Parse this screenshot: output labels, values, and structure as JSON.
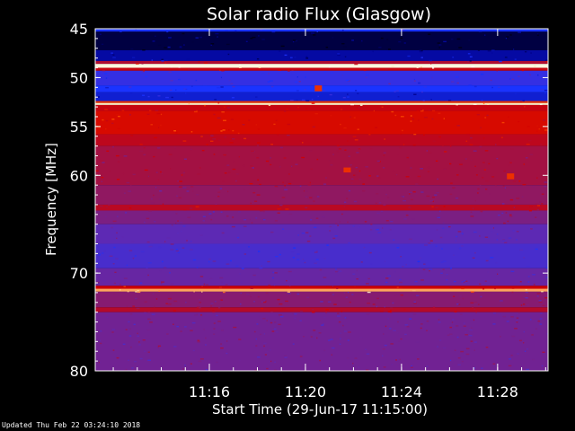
{
  "chart_data": {
    "type": "heatmap",
    "title": "Solar radio Flux (Glasgow)",
    "xlabel": "Start Time (29-Jun-17 11:15:00)",
    "ylabel": "Frequency [MHz]",
    "x_range_minutes": [
      11.25,
      30.1
    ],
    "y_range_mhz": [
      45,
      80
    ],
    "x_ticks": [
      {
        "minute": 16,
        "label": "11:16"
      },
      {
        "minute": 20,
        "label": "11:20"
      },
      {
        "minute": 24,
        "label": "11:24"
      },
      {
        "minute": 28,
        "label": "11:28"
      }
    ],
    "y_ticks": [
      {
        "mhz": 45,
        "label": "45"
      },
      {
        "mhz": 50,
        "label": "50"
      },
      {
        "mhz": 55,
        "label": "55"
      },
      {
        "mhz": 60,
        "label": "60"
      },
      {
        "mhz": 70,
        "label": "70"
      },
      {
        "mhz": 80,
        "label": "80"
      }
    ],
    "colormap": [
      "#000010",
      "#00008c",
      "#1a33ff",
      "#5a2ab8",
      "#9a1450",
      "#d10000",
      "#ff5000",
      "#ffe8a8",
      "#ffffff"
    ],
    "frequency_bands": [
      {
        "from": 45.0,
        "to": 45.3,
        "level": 0.25
      },
      {
        "from": 45.3,
        "to": 47.2,
        "level": 0.05
      },
      {
        "from": 47.2,
        "to": 48.3,
        "level": 0.15
      },
      {
        "from": 48.3,
        "to": 48.6,
        "level": 0.55
      },
      {
        "from": 48.6,
        "to": 49.0,
        "level": 0.95
      },
      {
        "from": 49.0,
        "to": 49.3,
        "level": 0.6
      },
      {
        "from": 49.3,
        "to": 50.8,
        "level": 0.3
      },
      {
        "from": 50.8,
        "to": 51.5,
        "level": 0.25
      },
      {
        "from": 51.5,
        "to": 52.4,
        "level": 0.2
      },
      {
        "from": 52.4,
        "to": 52.6,
        "level": 0.7
      },
      {
        "from": 52.6,
        "to": 52.8,
        "level": 0.92
      },
      {
        "from": 52.8,
        "to": 53.4,
        "level": 0.6
      },
      {
        "from": 53.4,
        "to": 55.8,
        "level": 0.64
      },
      {
        "from": 55.8,
        "to": 57.0,
        "level": 0.58
      },
      {
        "from": 57.0,
        "to": 61.0,
        "level": 0.52
      },
      {
        "from": 61.0,
        "to": 63.0,
        "level": 0.48
      },
      {
        "from": 63.0,
        "to": 63.6,
        "level": 0.57
      },
      {
        "from": 63.6,
        "to": 65.0,
        "level": 0.44
      },
      {
        "from": 65.0,
        "to": 67.0,
        "level": 0.38
      },
      {
        "from": 67.0,
        "to": 69.5,
        "level": 0.34
      },
      {
        "from": 69.5,
        "to": 71.3,
        "level": 0.4
      },
      {
        "from": 71.3,
        "to": 71.6,
        "level": 0.62
      },
      {
        "from": 71.6,
        "to": 71.9,
        "level": 0.82
      },
      {
        "from": 71.9,
        "to": 73.5,
        "level": 0.46
      },
      {
        "from": 73.5,
        "to": 74.0,
        "level": 0.56
      },
      {
        "from": 74.0,
        "to": 80.0,
        "level": 0.42
      }
    ],
    "bursts": [
      {
        "minute": 20.5,
        "from": 50.8,
        "to": 51.4
      },
      {
        "minute": 21.7,
        "from": 59.2,
        "to": 59.7
      },
      {
        "minute": 28.5,
        "from": 59.8,
        "to": 60.4
      }
    ]
  },
  "footer": {
    "updated": "Updated Thu Feb 22 03:24:10 2018"
  }
}
